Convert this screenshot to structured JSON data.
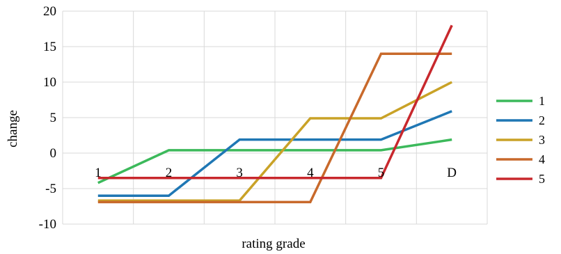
{
  "chart_data": {
    "type": "line",
    "title": "",
    "xlabel": "rating grade",
    "ylabel": "change",
    "categories": [
      "1",
      "2",
      "3",
      "4",
      "5",
      "D"
    ],
    "ylim": [
      -10,
      20
    ],
    "yticks": [
      -10,
      -5,
      0,
      5,
      10,
      15,
      20
    ],
    "grid": true,
    "legend_position": "right",
    "series": [
      {
        "name": "1",
        "color": "#3cb95b",
        "values": [
          -4.2,
          0.4,
          0.4,
          0.4,
          0.4,
          1.9
        ]
      },
      {
        "name": "2",
        "color": "#1f77b4",
        "values": [
          -6.0,
          -6.0,
          1.9,
          1.9,
          1.9,
          5.9
        ]
      },
      {
        "name": "3",
        "color": "#c9a227",
        "values": [
          -6.7,
          -6.7,
          -6.7,
          4.9,
          4.9,
          10.0
        ]
      },
      {
        "name": "4",
        "color": "#c8692b",
        "values": [
          -6.9,
          -6.9,
          -6.9,
          -6.9,
          14.0,
          14.0
        ]
      },
      {
        "name": "5",
        "color": "#c8282d",
        "values": [
          -3.5,
          -3.5,
          -3.5,
          -3.5,
          -3.5,
          18.0
        ]
      }
    ]
  }
}
